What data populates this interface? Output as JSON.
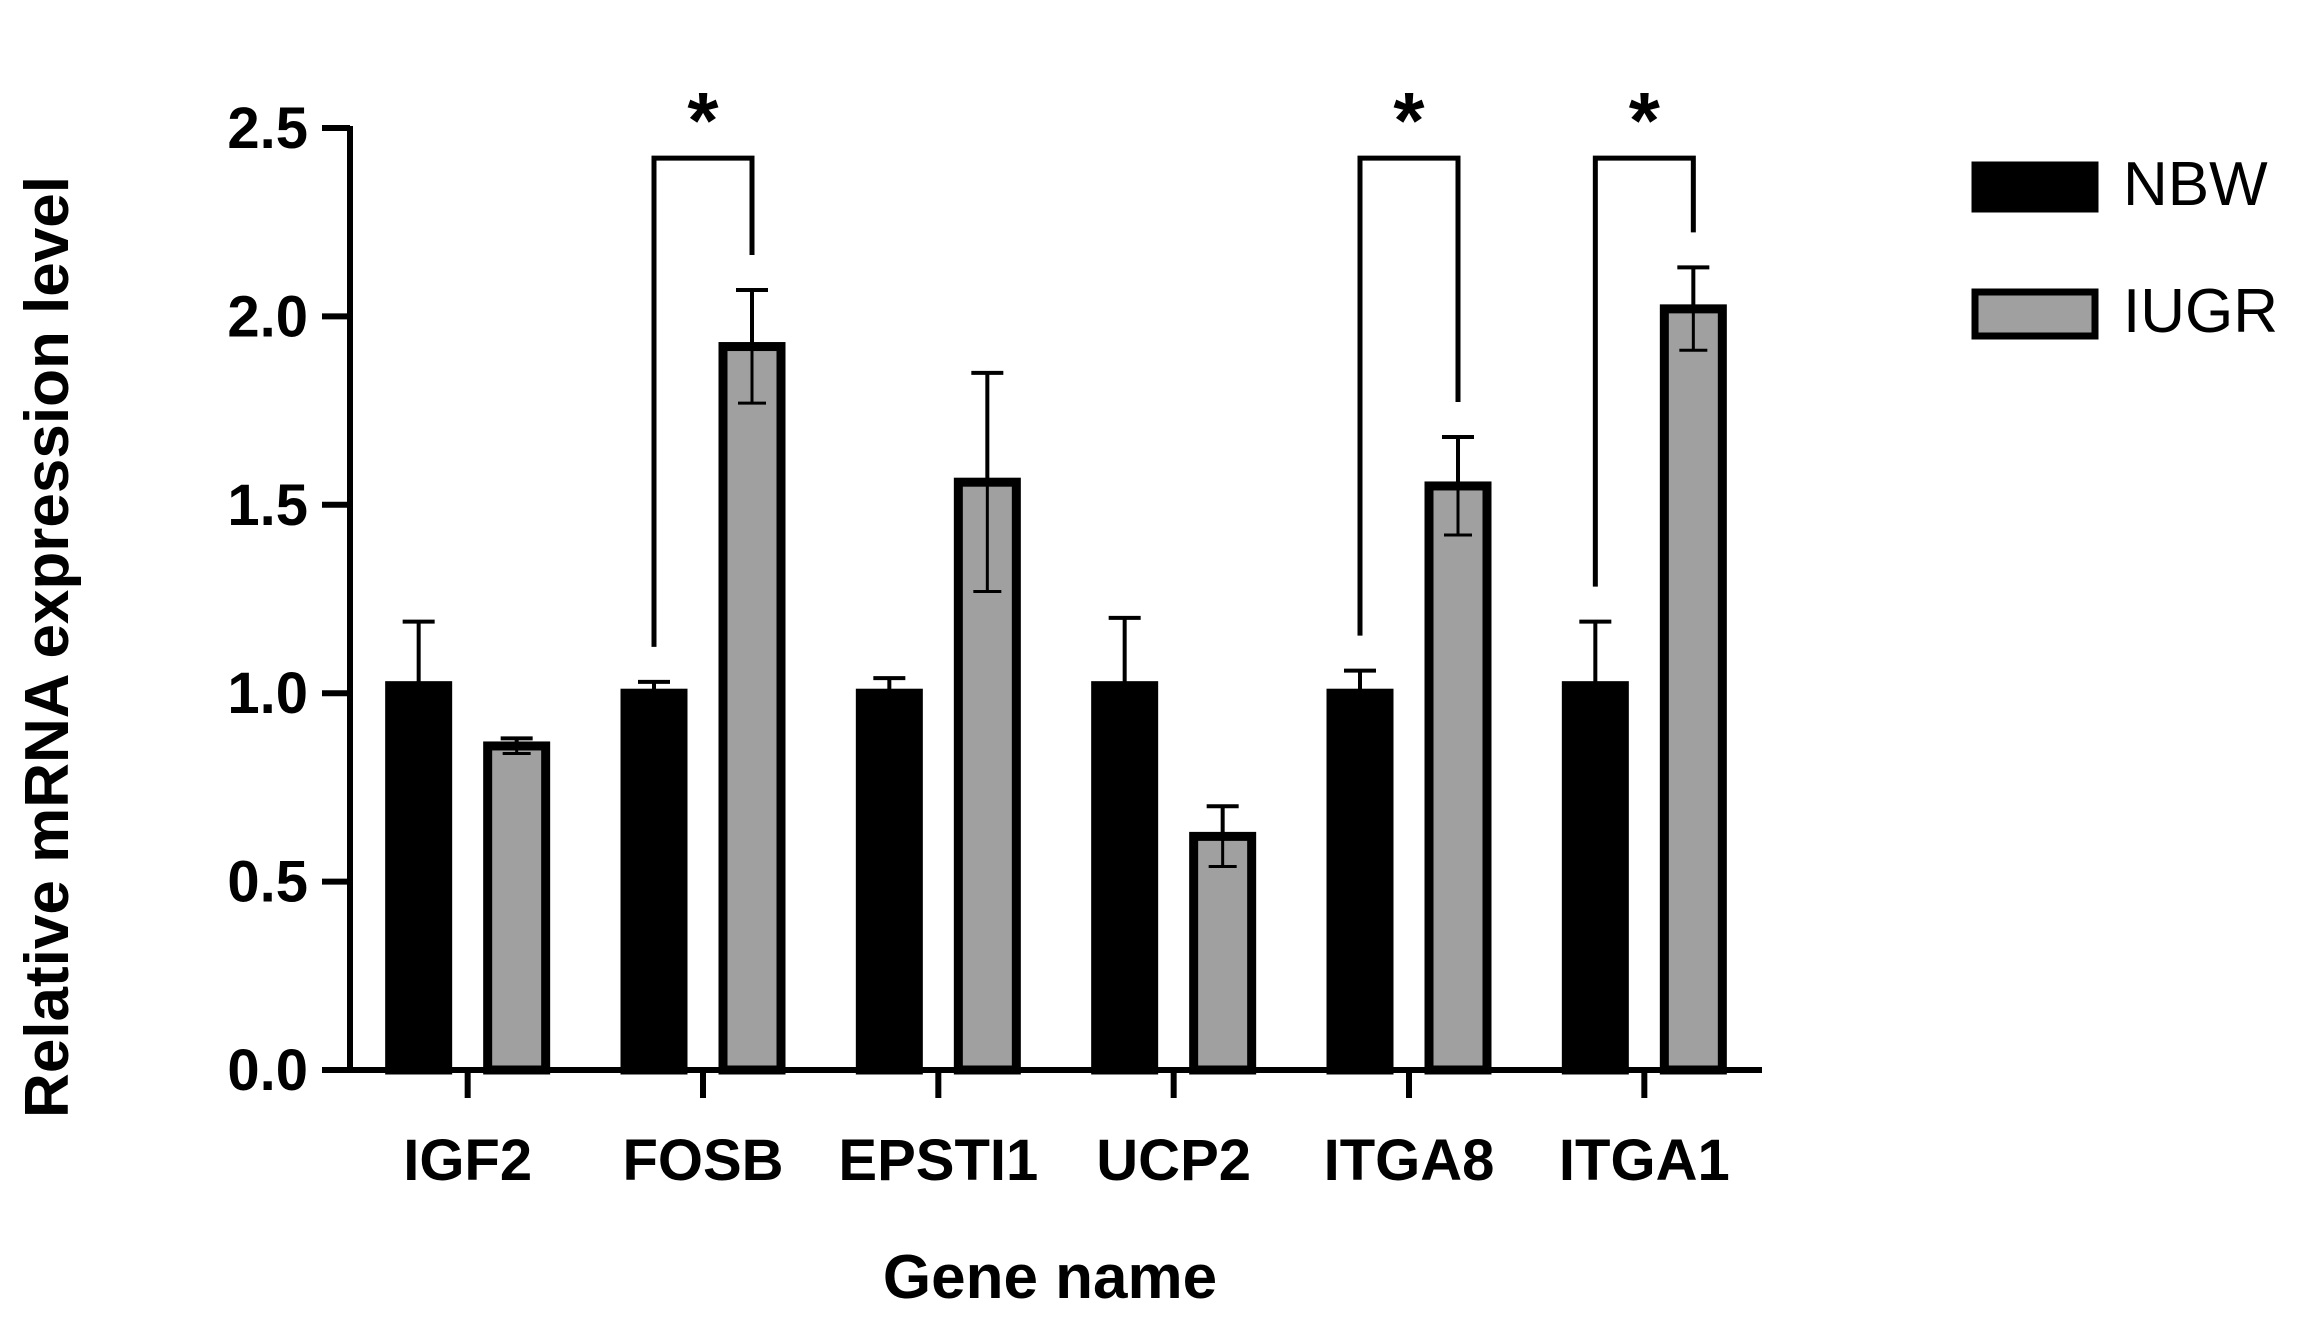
{
  "chart_data": {
    "type": "bar",
    "title": "",
    "xlabel": "Gene name",
    "ylabel": "Relative mRNA expression level",
    "ylim": [
      0,
      2.5
    ],
    "yticks": [
      "0.0",
      "0.5",
      "1.0",
      "1.5",
      "2.0",
      "2.5"
    ],
    "categories": [
      "IGF2",
      "FOSB",
      "EPSTI1",
      "UCP2",
      "ITGA8",
      "ITGA1"
    ],
    "series": [
      {
        "name": "NBW",
        "color": "#000000",
        "values": [
          1.02,
          1.0,
          1.0,
          1.02,
          1.0,
          1.02
        ],
        "errors": [
          0.17,
          0.03,
          0.04,
          0.18,
          0.06,
          0.17
        ]
      },
      {
        "name": "IUGR",
        "color": "#a0a0a0",
        "values": [
          0.86,
          1.92,
          1.56,
          0.62,
          1.55,
          2.02
        ],
        "errors": [
          0.02,
          0.15,
          0.29,
          0.08,
          0.13,
          0.11
        ]
      }
    ],
    "significance": [
      {
        "category": "FOSB",
        "label": "*"
      },
      {
        "category": "ITGA8",
        "label": "*"
      },
      {
        "category": "ITGA1",
        "label": "*"
      }
    ],
    "legend_position": "top-right",
    "grid": false
  }
}
